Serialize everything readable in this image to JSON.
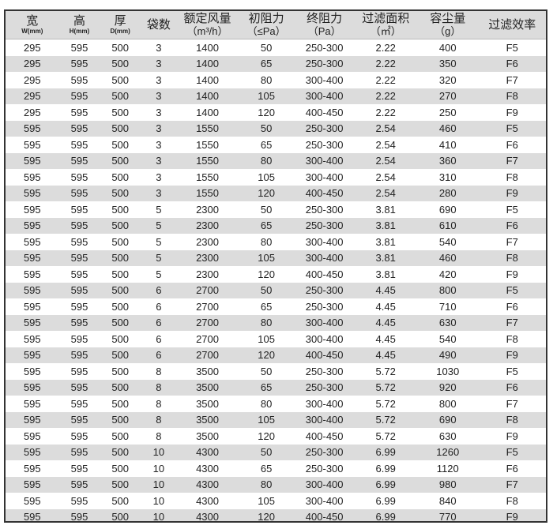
{
  "headers": [
    {
      "main": "宽",
      "sub": "W(mm)"
    },
    {
      "main": "高",
      "sub": "H(mm)"
    },
    {
      "main": "厚",
      "sub": "D(mm)"
    },
    {
      "main": "袋数"
    },
    {
      "main": "额定风量",
      "unit": "（m³/h）"
    },
    {
      "main": "初阻力",
      "unit": "（≤Pa）"
    },
    {
      "main": "终阻力",
      "unit": "（Pa）"
    },
    {
      "main": "过滤面积",
      "unit": "（㎡）"
    },
    {
      "main": "容尘量",
      "unit": "（g）"
    },
    {
      "main": "过滤效率"
    }
  ],
  "rows": [
    [
      "295",
      "595",
      "500",
      "3",
      "1400",
      "50",
      "250-300",
      "2.22",
      "400",
      "F5"
    ],
    [
      "295",
      "595",
      "500",
      "3",
      "1400",
      "65",
      "250-300",
      "2.22",
      "350",
      "F6"
    ],
    [
      "295",
      "595",
      "500",
      "3",
      "1400",
      "80",
      "300-400",
      "2.22",
      "320",
      "F7"
    ],
    [
      "295",
      "595",
      "500",
      "3",
      "1400",
      "105",
      "300-400",
      "2.22",
      "270",
      "F8"
    ],
    [
      "295",
      "595",
      "500",
      "3",
      "1400",
      "120",
      "400-450",
      "2.22",
      "250",
      "F9"
    ],
    [
      "595",
      "595",
      "500",
      "3",
      "1550",
      "50",
      "250-300",
      "2.54",
      "460",
      "F5"
    ],
    [
      "595",
      "595",
      "500",
      "3",
      "1550",
      "65",
      "250-300",
      "2.54",
      "410",
      "F6"
    ],
    [
      "595",
      "595",
      "500",
      "3",
      "1550",
      "80",
      "300-400",
      "2.54",
      "360",
      "F7"
    ],
    [
      "595",
      "595",
      "500",
      "3",
      "1550",
      "105",
      "300-400",
      "2.54",
      "310",
      "F8"
    ],
    [
      "595",
      "595",
      "500",
      "3",
      "1550",
      "120",
      "400-450",
      "2.54",
      "280",
      "F9"
    ],
    [
      "595",
      "595",
      "500",
      "5",
      "2300",
      "50",
      "250-300",
      "3.81",
      "690",
      "F5"
    ],
    [
      "595",
      "595",
      "500",
      "5",
      "2300",
      "65",
      "250-300",
      "3.81",
      "610",
      "F6"
    ],
    [
      "595",
      "595",
      "500",
      "5",
      "2300",
      "80",
      "300-400",
      "3.81",
      "540",
      "F7"
    ],
    [
      "595",
      "595",
      "500",
      "5",
      "2300",
      "105",
      "300-400",
      "3.81",
      "460",
      "F8"
    ],
    [
      "595",
      "595",
      "500",
      "5",
      "2300",
      "120",
      "400-450",
      "3.81",
      "420",
      "F9"
    ],
    [
      "595",
      "595",
      "500",
      "6",
      "2700",
      "50",
      "250-300",
      "4.45",
      "800",
      "F5"
    ],
    [
      "595",
      "595",
      "500",
      "6",
      "2700",
      "65",
      "250-300",
      "4.45",
      "710",
      "F6"
    ],
    [
      "595",
      "595",
      "500",
      "6",
      "2700",
      "80",
      "300-400",
      "4.45",
      "630",
      "F7"
    ],
    [
      "595",
      "595",
      "500",
      "6",
      "2700",
      "105",
      "300-400",
      "4.45",
      "540",
      "F8"
    ],
    [
      "595",
      "595",
      "500",
      "6",
      "2700",
      "120",
      "400-450",
      "4.45",
      "490",
      "F9"
    ],
    [
      "595",
      "595",
      "500",
      "8",
      "3500",
      "50",
      "250-300",
      "5.72",
      "1030",
      "F5"
    ],
    [
      "595",
      "595",
      "500",
      "8",
      "3500",
      "65",
      "250-300",
      "5.72",
      "920",
      "F6"
    ],
    [
      "595",
      "595",
      "500",
      "8",
      "3500",
      "80",
      "300-400",
      "5.72",
      "800",
      "F7"
    ],
    [
      "595",
      "595",
      "500",
      "8",
      "3500",
      "105",
      "300-400",
      "5.72",
      "690",
      "F8"
    ],
    [
      "595",
      "595",
      "500",
      "8",
      "3500",
      "120",
      "400-450",
      "5.72",
      "630",
      "F9"
    ],
    [
      "595",
      "595",
      "500",
      "10",
      "4300",
      "50",
      "250-300",
      "6.99",
      "1260",
      "F5"
    ],
    [
      "595",
      "595",
      "500",
      "10",
      "4300",
      "65",
      "250-300",
      "6.99",
      "1120",
      "F6"
    ],
    [
      "595",
      "595",
      "500",
      "10",
      "4300",
      "80",
      "300-400",
      "6.99",
      "980",
      "F7"
    ],
    [
      "595",
      "595",
      "500",
      "10",
      "4300",
      "105",
      "300-400",
      "6.99",
      "840",
      "F8"
    ],
    [
      "595",
      "595",
      "500",
      "10",
      "4300",
      "120",
      "400-450",
      "6.99",
      "770",
      "F9"
    ]
  ],
  "colors": {
    "stripe": "#dcdcdc",
    "border": "#333333"
  }
}
